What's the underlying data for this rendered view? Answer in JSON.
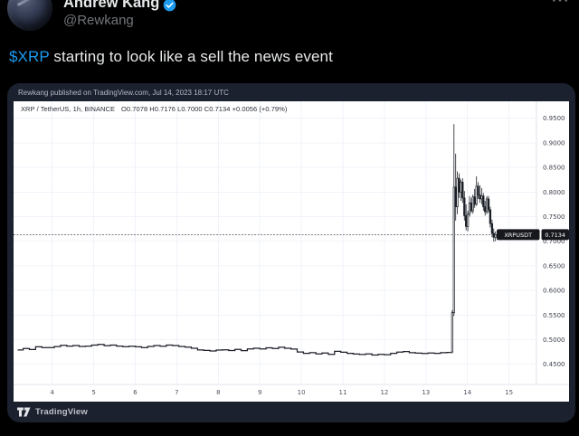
{
  "tweet": {
    "display_name": "Andrew Kang",
    "handle": "@Rewkang",
    "more_label": "···",
    "cashtag": "$XRP",
    "body": " starting to look like a sell the news event"
  },
  "card": {
    "attribution": "Rewkang published on TradingView.com, Jul 14, 2023 18:17 UTC",
    "brand": "TradingView"
  },
  "colors": {
    "accent_blue": "#1d9bf0",
    "card_bg": "#1c2130",
    "chart_bg": "#ffffff",
    "series_black": "#1b1f27",
    "grid": "#f0f3fa",
    "label_box": "#16181d"
  },
  "chart_data": {
    "type": "candlestick",
    "symbol": "XRP / TetherUS, 1h, BINANCE",
    "ohlc_legend": "O0.7078 H0.7176 L0.7000 C0.7134 +0.0056 (+0.79%)",
    "open": 0.7078,
    "high": 0.7176,
    "low": 0.7,
    "close": 0.7134,
    "change": "+0.0056 (+0.79%)",
    "symbol_ticker": "XRPUSDT",
    "last_price": 0.7134,
    "last_price_label": "0.7134",
    "x_axis_unit": "day of July 2023",
    "x_ticks": [
      4,
      5,
      6,
      7,
      8,
      9,
      10,
      11,
      12,
      13,
      14,
      15
    ],
    "y_ticks": [
      0.95,
      0.9,
      0.85,
      0.8,
      0.75,
      0.7,
      0.65,
      0.6,
      0.55,
      0.5,
      0.45
    ],
    "xlim": [
      3.17,
      15.62
    ],
    "ylim": [
      0.41,
      0.97
    ],
    "grid": true,
    "baseline": [
      [
        3.17,
        0.479
      ],
      [
        3.3,
        0.482
      ],
      [
        3.45,
        0.48
      ],
      [
        3.6,
        0.4855
      ],
      [
        3.75,
        0.484
      ],
      [
        3.9,
        0.4838
      ],
      [
        4.05,
        0.486
      ],
      [
        4.2,
        0.4885
      ],
      [
        4.35,
        0.487
      ],
      [
        4.5,
        0.488
      ],
      [
        4.65,
        0.4862
      ],
      [
        4.8,
        0.487
      ],
      [
        4.95,
        0.489
      ],
      [
        5.1,
        0.4905
      ],
      [
        5.25,
        0.4878
      ],
      [
        5.4,
        0.489
      ],
      [
        5.55,
        0.487
      ],
      [
        5.7,
        0.4858
      ],
      [
        5.85,
        0.4868
      ],
      [
        6.0,
        0.4855
      ],
      [
        6.15,
        0.484
      ],
      [
        6.3,
        0.4862
      ],
      [
        6.45,
        0.488
      ],
      [
        6.6,
        0.4868
      ],
      [
        6.75,
        0.489
      ],
      [
        6.9,
        0.488
      ],
      [
        7.05,
        0.4862
      ],
      [
        7.2,
        0.4848
      ],
      [
        7.35,
        0.4825
      ],
      [
        7.5,
        0.479
      ],
      [
        7.65,
        0.4782
      ],
      [
        7.8,
        0.477
      ],
      [
        7.95,
        0.4788
      ],
      [
        8.1,
        0.4795
      ],
      [
        8.25,
        0.478
      ],
      [
        8.4,
        0.4802
      ],
      [
        8.55,
        0.4778
      ],
      [
        8.7,
        0.4812
      ],
      [
        8.85,
        0.4825
      ],
      [
        9.0,
        0.481
      ],
      [
        9.15,
        0.4835
      ],
      [
        9.3,
        0.482
      ],
      [
        9.45,
        0.4845
      ],
      [
        9.6,
        0.4825
      ],
      [
        9.75,
        0.4808
      ],
      [
        9.9,
        0.475
      ],
      [
        10.05,
        0.4722
      ],
      [
        10.2,
        0.4735
      ],
      [
        10.35,
        0.471
      ],
      [
        10.5,
        0.4728
      ],
      [
        10.65,
        0.47
      ],
      [
        10.8,
        0.4762
      ],
      [
        10.95,
        0.4745
      ],
      [
        11.1,
        0.4722
      ],
      [
        11.25,
        0.4708
      ],
      [
        11.4,
        0.4698
      ],
      [
        11.55,
        0.4712
      ],
      [
        11.7,
        0.4688
      ],
      [
        11.85,
        0.4702
      ],
      [
        12.0,
        0.4695
      ],
      [
        12.15,
        0.4722
      ],
      [
        12.3,
        0.4748
      ],
      [
        12.45,
        0.476
      ],
      [
        12.6,
        0.4735
      ],
      [
        12.75,
        0.4726
      ],
      [
        12.9,
        0.4718
      ],
      [
        13.05,
        0.473
      ],
      [
        13.2,
        0.4722
      ],
      [
        13.35,
        0.4735
      ],
      [
        13.5,
        0.474
      ],
      [
        13.6,
        0.4745
      ]
    ],
    "candles": [
      [
        13.633,
        0.475,
        0.56,
        0.472,
        0.555
      ],
      [
        13.675,
        0.555,
        0.938,
        0.548,
        0.81
      ],
      [
        13.717,
        0.81,
        0.878,
        0.742,
        0.77
      ],
      [
        13.758,
        0.77,
        0.842,
        0.755,
        0.828
      ],
      [
        13.8,
        0.828,
        0.838,
        0.788,
        0.8
      ],
      [
        13.842,
        0.8,
        0.825,
        0.782,
        0.82
      ],
      [
        13.883,
        0.82,
        0.828,
        0.778,
        0.788
      ],
      [
        13.925,
        0.788,
        0.802,
        0.742,
        0.752
      ],
      [
        13.967,
        0.752,
        0.775,
        0.722,
        0.73
      ],
      [
        14.008,
        0.73,
        0.762,
        0.72,
        0.755
      ],
      [
        14.05,
        0.755,
        0.792,
        0.75,
        0.778
      ],
      [
        14.092,
        0.778,
        0.788,
        0.758,
        0.762
      ],
      [
        14.133,
        0.762,
        0.795,
        0.756,
        0.79
      ],
      [
        14.175,
        0.79,
        0.806,
        0.768,
        0.775
      ],
      [
        14.217,
        0.775,
        0.832,
        0.772,
        0.812
      ],
      [
        14.258,
        0.812,
        0.82,
        0.786,
        0.794
      ],
      [
        14.3,
        0.794,
        0.814,
        0.778,
        0.786
      ],
      [
        14.342,
        0.786,
        0.808,
        0.775,
        0.792
      ],
      [
        14.383,
        0.792,
        0.798,
        0.762,
        0.77
      ],
      [
        14.425,
        0.77,
        0.782,
        0.752,
        0.76
      ],
      [
        14.467,
        0.76,
        0.792,
        0.755,
        0.786
      ],
      [
        14.508,
        0.786,
        0.792,
        0.758,
        0.764
      ],
      [
        14.55,
        0.764,
        0.77,
        0.728,
        0.736
      ],
      [
        14.592,
        0.736,
        0.744,
        0.708,
        0.716
      ],
      [
        14.633,
        0.716,
        0.726,
        0.699,
        0.708
      ],
      [
        14.675,
        0.708,
        0.72,
        0.7,
        0.7134
      ]
    ]
  }
}
